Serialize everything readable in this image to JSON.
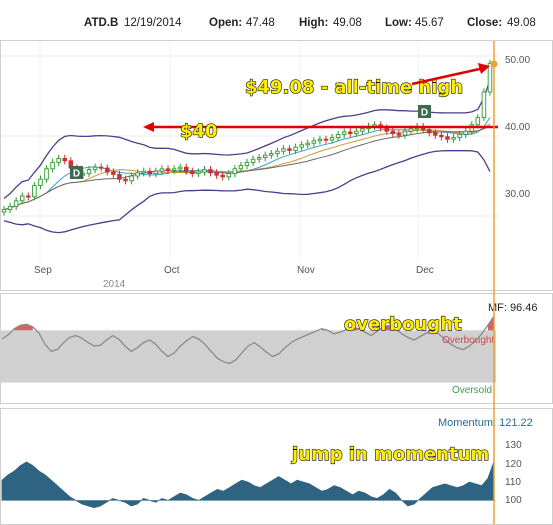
{
  "header": {
    "symbol": "ATD.B",
    "date": "12/19/2014",
    "open_label": "Open:",
    "open": "47.48",
    "high_label": "High:",
    "high": "49.08",
    "low_label": "Low:",
    "low": "45.67",
    "close_label": "Close:",
    "close": "49.08"
  },
  "annotations": {
    "all_time_high": "$49.08 - all-time high",
    "level_40": "$40",
    "overbought": "overbought",
    "jump": "jump in momentum"
  },
  "colors": {
    "up_candle": "#2e9a2e",
    "down_candle": "#c83232",
    "arrow": "#e00000",
    "bollinger": "#4a3f8a",
    "mf_line": "#8a8a8a",
    "mf_band": "#d0d0d0",
    "mf_overbought_fill": "#c84a4a",
    "momentum_fill": "#2e6382",
    "cursor": "#f0a030"
  },
  "chart_data": [
    {
      "type": "candlestick",
      "title": "ATD.B 12/19/2014",
      "x_labels": [
        "Sep",
        "Oct",
        "Nov",
        "Dec"
      ],
      "year_label": "2014",
      "y_ticks": [
        "50.00",
        "40.00",
        "30.00"
      ],
      "ylim": [
        24.5,
        51.5
      ],
      "grid": true,
      "dividend_markers": [
        "D",
        "D"
      ],
      "close": [
        30.8,
        31.2,
        31.9,
        32.5,
        32.4,
        33.8,
        34.6,
        35.9,
        36.7,
        37.2,
        36.9,
        36.0,
        35.1,
        35.3,
        35.8,
        36.1,
        36.0,
        35.5,
        35.2,
        34.6,
        34.4,
        35.0,
        35.4,
        35.6,
        35.3,
        35.6,
        35.9,
        35.7,
        35.9,
        36.1,
        35.6,
        35.3,
        35.5,
        35.8,
        35.4,
        35.1,
        34.9,
        35.3,
        35.9,
        36.3,
        36.7,
        37.1,
        37.3,
        37.6,
        37.8,
        38.1,
        38.4,
        38.2,
        38.6,
        38.9,
        39.1,
        39.4,
        39.6,
        39.5,
        39.8,
        40.2,
        40.5,
        40.3,
        40.6,
        40.9,
        41.2,
        41.4,
        41.0,
        40.6,
        40.3,
        40.1,
        40.6,
        40.9,
        41.2,
        40.8,
        40.4,
        40.1,
        39.9,
        39.6,
        39.8,
        40.2,
        40.6,
        41.4,
        42.3,
        45.5,
        49.08
      ]
    },
    {
      "type": "line",
      "title": "MF: 96.46",
      "latest_value": "96.46",
      "band_labels": [
        "Overbought",
        "Oversold"
      ],
      "ylim": [
        0,
        100
      ],
      "overbought_level": 80,
      "oversold_level": 20,
      "values": [
        70,
        75,
        82,
        86,
        87,
        84,
        77,
        64,
        56,
        58,
        66,
        72,
        74,
        71,
        66,
        62,
        63,
        69,
        74,
        70,
        62,
        56,
        60,
        66,
        69,
        64,
        56,
        50,
        54,
        62,
        68,
        73,
        70,
        64,
        56,
        48,
        44,
        42,
        46,
        54,
        62,
        66,
        61,
        55,
        50,
        53,
        60,
        66,
        70,
        73,
        76,
        79,
        82,
        80,
        76,
        78,
        81,
        84,
        82,
        78,
        74,
        79,
        84,
        86,
        82,
        76,
        72,
        69,
        73,
        77,
        80,
        76,
        70,
        64,
        60,
        58,
        62,
        68,
        76,
        86,
        96.46
      ]
    },
    {
      "type": "area",
      "title": "Momentum: 121.22",
      "latest_value": "121.22",
      "y_ticks": [
        "130",
        "120",
        "110",
        "100"
      ],
      "ylim": [
        92,
        133
      ],
      "baseline": 100,
      "values": [
        111,
        114,
        116,
        119,
        121,
        119,
        116,
        114,
        111,
        108,
        105,
        102,
        100,
        98,
        97,
        96,
        97,
        99,
        101,
        100,
        99,
        97,
        98,
        101,
        100,
        99,
        101,
        100,
        102,
        104,
        103,
        101,
        100,
        102,
        104,
        106,
        105,
        107,
        109,
        111,
        110,
        108,
        107,
        109,
        111,
        113,
        111,
        109,
        111,
        110,
        109,
        107,
        105,
        106,
        108,
        107,
        105,
        103,
        105,
        104,
        102,
        101,
        103,
        106,
        104,
        100,
        97,
        98,
        101,
        104,
        107,
        108,
        109,
        108,
        107,
        108,
        110,
        109,
        108,
        112,
        121.22
      ]
    }
  ]
}
